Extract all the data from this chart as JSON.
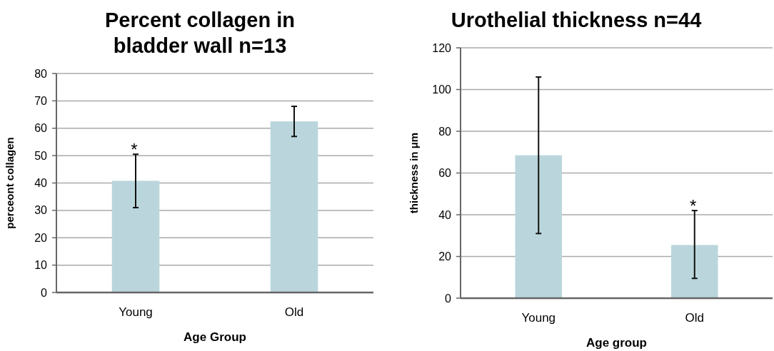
{
  "chart_data": [
    {
      "type": "bar",
      "title": "Percent collagen in bladder wall n=13",
      "xlabel": "Age Group",
      "ylabel": "perceont collagen",
      "categories": [
        "Young",
        "Old"
      ],
      "values": [
        40.8,
        62.5
      ],
      "errors": [
        [
          31,
          50.5
        ],
        [
          57,
          68
        ]
      ],
      "color": "#bad6dc",
      "ylim": [
        0,
        80
      ],
      "yticks": [
        0,
        10,
        20,
        30,
        40,
        50,
        60,
        70,
        80
      ],
      "grid": "y",
      "annotations": [
        {
          "text": "*",
          "x": "Young",
          "y": 50.5
        }
      ]
    },
    {
      "type": "bar",
      "title": "Urothelial thickness n=44",
      "xlabel": "Age group",
      "ylabel": "thickness in μm",
      "categories": [
        "Young",
        "Old"
      ],
      "values": [
        68.5,
        25.5
      ],
      "errors": [
        [
          31,
          106
        ],
        [
          9.5,
          42
        ]
      ],
      "color": "#bad6dc",
      "ylim": [
        0,
        120
      ],
      "yticks": [
        0,
        20,
        40,
        60,
        80,
        100,
        120
      ],
      "grid": "y",
      "annotations": [
        {
          "text": "*",
          "x": "Old",
          "y": 42
        }
      ]
    }
  ]
}
